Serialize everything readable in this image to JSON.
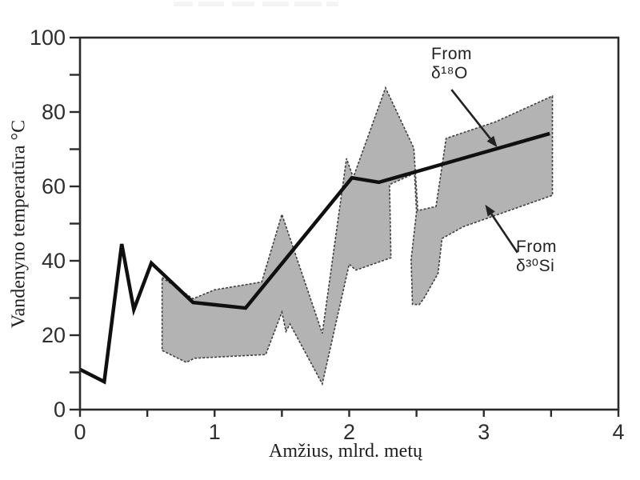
{
  "figure": {
    "background": "#ffffff",
    "redacted_title_blocks": [
      [
        217,
        24
      ],
      [
        248,
        32
      ],
      [
        290,
        28
      ],
      [
        328,
        33
      ],
      [
        368,
        34
      ],
      [
        408,
        15
      ]
    ]
  },
  "chart_data": {
    "type": "line",
    "title": "",
    "xlabel": "Amžius, mlrd. metų",
    "ylabel": "Vandenyno temperatūra °C",
    "xlim": [
      0,
      4
    ],
    "ylim": [
      0,
      100
    ],
    "grid": false,
    "frame_color": "#2b2b2b",
    "text_color": "#2e2e2e",
    "x_major_ticks": [
      0,
      1,
      2,
      3,
      4
    ],
    "x_tick_labels": [
      "0",
      "1",
      "2",
      "3",
      "4"
    ],
    "x_minor_ticks": [
      0.5,
      1.5,
      2.5,
      3.5
    ],
    "y_labeled_ticks": [
      0,
      20,
      40,
      60,
      80,
      100
    ],
    "y_tick_labels": [
      "0",
      "20",
      "40",
      "60",
      "80",
      "100"
    ],
    "y_minor_ticks": [
      10,
      30,
      50,
      70,
      90
    ],
    "series": [
      {
        "name": "From δ¹⁸O",
        "type": "line",
        "color": "#101010",
        "width": 4.5,
        "points": [
          [
            0,
            10.8
          ],
          [
            0.18,
            7.5
          ],
          [
            0.31,
            44.5
          ],
          [
            0.4,
            26.9
          ],
          [
            0.53,
            39.4
          ],
          [
            0.84,
            28.8
          ],
          [
            1.23,
            27.3
          ],
          [
            2.02,
            62.3
          ],
          [
            2.22,
            61.1
          ],
          [
            3.49,
            74.2
          ]
        ]
      },
      {
        "name": "From δ³⁰Si",
        "type": "band",
        "fill": "#b3b3b3",
        "stroke": "#3f3f3f",
        "stroke_dash": "3 2",
        "polygon": [
          [
            0.61,
            35.5
          ],
          [
            0.84,
            29.8
          ],
          [
            1.0,
            32.2
          ],
          [
            1.35,
            34.3
          ],
          [
            1.5,
            52.5
          ],
          [
            1.8,
            20.5
          ],
          [
            1.98,
            67.5
          ],
          [
            2.03,
            62.4
          ],
          [
            2.27,
            86.5
          ],
          [
            2.48,
            70.3
          ],
          [
            2.51,
            53.5
          ],
          [
            2.645,
            54.6
          ],
          [
            2.72,
            72.9
          ],
          [
            3.09,
            77.4
          ],
          [
            3.51,
            84.3
          ],
          [
            3.51,
            57.6
          ],
          [
            2.85,
            49.2
          ],
          [
            2.69,
            46.0
          ],
          [
            2.66,
            36.6
          ],
          [
            2.555,
            29.9
          ],
          [
            2.52,
            28.2
          ],
          [
            2.47,
            28.3
          ],
          [
            2.46,
            40.3
          ],
          [
            2.5,
            53.2
          ],
          [
            2.485,
            63.5
          ],
          [
            2.3,
            60.5
          ],
          [
            2.31,
            40.8
          ],
          [
            2.05,
            37.5
          ],
          [
            2.0,
            39.1
          ],
          [
            1.8,
            6.9
          ],
          [
            1.56,
            23.0
          ],
          [
            1.53,
            21.0
          ],
          [
            1.5,
            26.2
          ],
          [
            1.38,
            14.8
          ],
          [
            0.85,
            13.8
          ],
          [
            0.79,
            12.7
          ],
          [
            0.61,
            15.9
          ]
        ]
      }
    ],
    "annotations": [
      {
        "label_lines": [
          "From",
          "δ¹⁸O"
        ],
        "arrow": {
          "tail": [
            2.76,
            86.0
          ],
          "tip": [
            3.1,
            70.5
          ]
        },
        "color": "#222222"
      },
      {
        "label_lines": [
          "From",
          "δ³⁰Si"
        ],
        "arrow": {
          "tail": [
            3.25,
            42.2
          ],
          "tip": [
            3.01,
            55.1
          ]
        },
        "color": "#222222"
      }
    ]
  }
}
